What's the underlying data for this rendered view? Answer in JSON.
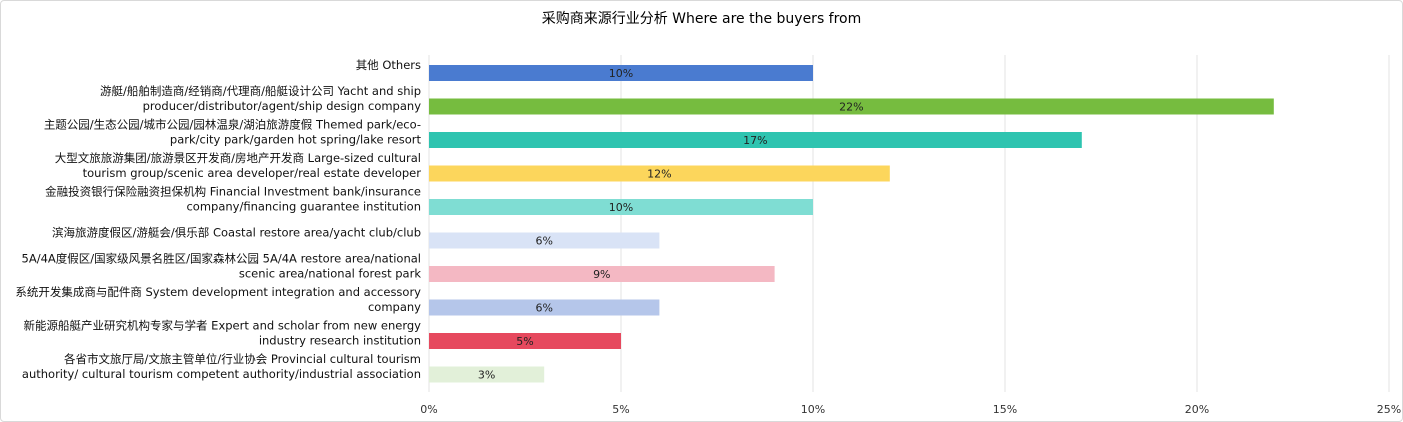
{
  "chart_data": {
    "type": "bar",
    "orientation": "horizontal",
    "title": "采购商来源行业分析  Where are the buyers from",
    "categories": [
      [
        "其他 Others"
      ],
      [
        "游艇/船舶制造商/经销商/代理商/船艇设计公司 Yacht and ship",
        "producer/distributor/agent/ship design company"
      ],
      [
        "主题公园/生态公园/城市公园/园林温泉/湖泊旅游度假 Themed park/eco-",
        "park/city park/garden hot spring/lake resort"
      ],
      [
        "大型文旅旅游集团/旅游景区开发商/房地产开发商 Large-sized cultural",
        "tourism group/scenic area developer/real estate developer"
      ],
      [
        "金融投资银行保险融资担保机构 Financial Investment bank/insurance",
        "company/financing guarantee institution"
      ],
      [
        "滨海旅游度假区/游艇会/俱乐部 Coastal restore area/yacht club/club"
      ],
      [
        "5A/4A度假区/国家级风景名胜区/国家森林公园 5A/4A restore area/national",
        "scenic area/national forest park"
      ],
      [
        "系统开发集成商与配件商 System development integration and accessory",
        "company"
      ],
      [
        "新能源船艇产业研究机构专家与学者 Expert and scholar from new energy",
        "industry research institution"
      ],
      [
        "各省市文旅厅局/文旅主管单位/行业协会 Provincial cultural tourism",
        "authority/ cultural tourism competent authority/industrial association"
      ]
    ],
    "values": [
      10,
      22,
      17,
      12,
      10,
      6,
      9,
      6,
      5,
      3
    ],
    "value_labels": [
      "10%",
      "22%",
      "17%",
      "12%",
      "10%",
      "6%",
      "9%",
      "6%",
      "5%",
      "3%"
    ],
    "colors": [
      "#4A7BD0",
      "#76BC3F",
      "#2EC4B0",
      "#FCD65C",
      "#7FDDD3",
      "#D9E3F6",
      "#F4B8C3",
      "#B5C6EA",
      "#E6495E",
      "#E2F0D9"
    ],
    "xlim": [
      0,
      25
    ],
    "xticks": [
      0,
      5,
      10,
      15,
      20,
      25
    ],
    "xtick_labels": [
      "0%",
      "5%",
      "10%",
      "15%",
      "20%",
      "25%"
    ],
    "grid": true,
    "legend": "none"
  }
}
